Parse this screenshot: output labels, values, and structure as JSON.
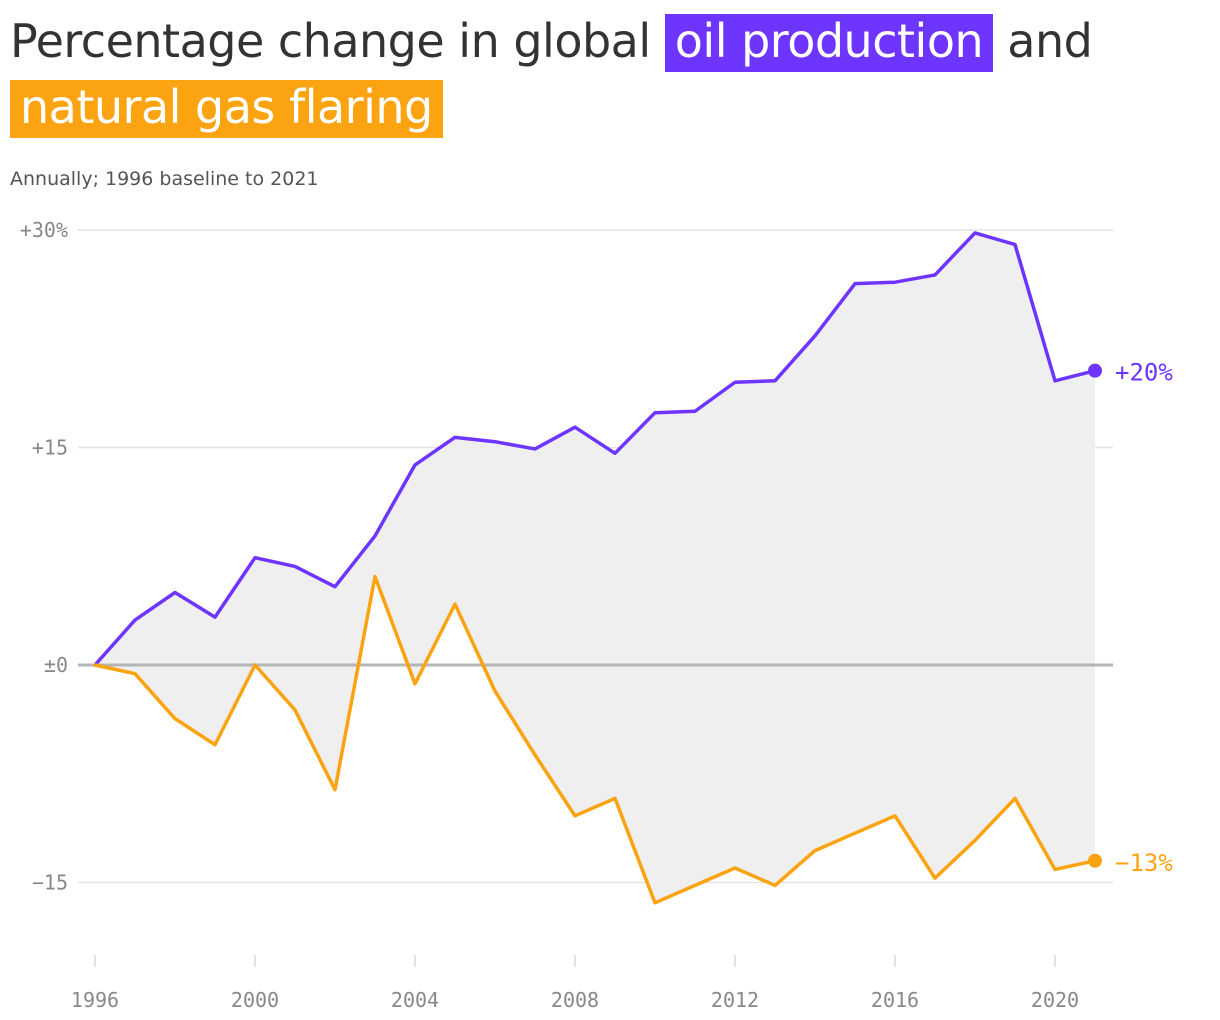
{
  "title": {
    "prefix": "Percentage change in global",
    "oil_highlight": "oil production",
    "middle": "and",
    "gas_highlight": "natural gas flaring"
  },
  "subtitle": "Annually; 1996 baseline to 2021",
  "colors": {
    "oil": "#6d35ff",
    "gas": "#fca311",
    "fill": "#efefef",
    "zero": "#b5b5b5",
    "grid": "#e2e2e2"
  },
  "chart_data": {
    "type": "line",
    "x": [
      1996,
      1997,
      1998,
      1999,
      2000,
      2001,
      2002,
      2003,
      2004,
      2005,
      2006,
      2007,
      2008,
      2009,
      2010,
      2011,
      2012,
      2013,
      2014,
      2015,
      2016,
      2017,
      2018,
      2019,
      2020,
      2021
    ],
    "series": [
      {
        "key": "oil",
        "values": [
          0,
          3.1,
          5.0,
          3.3,
          7.4,
          6.8,
          5.4,
          8.9,
          13.8,
          15.7,
          15.4,
          14.9,
          16.4,
          14.6,
          17.4,
          17.5,
          19.5,
          19.6,
          22.7,
          26.3,
          26.4,
          26.9,
          29.8,
          29.0,
          19.6,
          20.3
        ]
      },
      {
        "key": "gas",
        "values": [
          0,
          -0.6,
          -3.7,
          -5.5,
          0,
          -3.1,
          -8.6,
          6.1,
          -1.3,
          4.2,
          -1.8,
          -6.2,
          -10.4,
          -9.2,
          -16.4,
          -15.2,
          -14.0,
          -15.2,
          -12.8,
          -11.6,
          -10.4,
          -14.7,
          -12.1,
          -9.2,
          -14.1,
          -13.5
        ]
      }
    ],
    "end_labels": [
      "+20%",
      "−13%"
    ],
    "yticks": [
      {
        "value": 30,
        "label": "+30%"
      },
      {
        "value": 15,
        "label": "+15"
      },
      {
        "value": 0,
        "label": "±0"
      },
      {
        "value": -15,
        "label": "−15"
      }
    ],
    "xticks": [
      1996,
      2000,
      2004,
      2008,
      2012,
      2016,
      2020
    ],
    "ylim": [
      -20,
      30
    ],
    "xlim": [
      1996,
      2021
    ],
    "grid": true
  }
}
